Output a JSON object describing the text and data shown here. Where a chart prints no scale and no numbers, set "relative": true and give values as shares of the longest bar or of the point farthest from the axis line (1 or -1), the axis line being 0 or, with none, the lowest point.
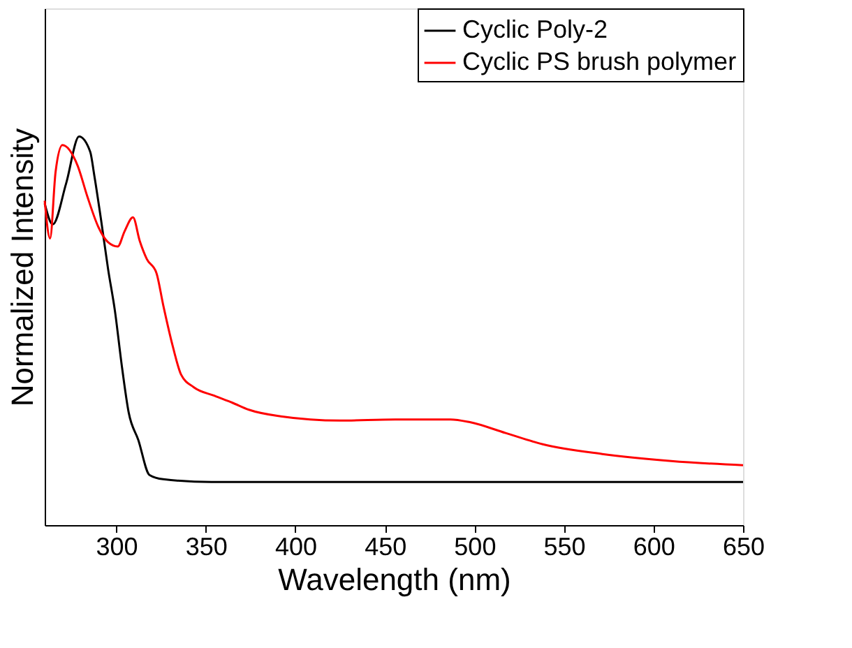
{
  "chart_data": {
    "type": "line",
    "xlabel": "Wavelength (nm)",
    "ylabel": "Normalized Intensity",
    "relative": true,
    "xlim": [
      260,
      650
    ],
    "xticks": [
      300,
      350,
      400,
      450,
      500,
      550,
      600,
      650
    ],
    "legend": "top right",
    "grid": false,
    "series": [
      {
        "name": "Cyclic Poly-2",
        "color": "#000000",
        "x": [
          260,
          264.5,
          272,
          279.2,
          285.4,
          287.7,
          291.5,
          295.4,
          299.2,
          303.1,
          306.9,
          312.3,
          318.5,
          326.2,
          353,
          450,
          550,
          650
        ],
        "values": [
          0.828,
          0.774,
          0.88,
          1.0,
          0.961,
          0.9,
          0.785,
          0.659,
          0.552,
          0.409,
          0.29,
          0.219,
          0.129,
          0.118,
          0.111,
          0.111,
          0.111,
          0.111
        ]
      },
      {
        "name": "Cyclic PS brush polymer",
        "color": "#ff0000",
        "x": [
          260,
          263,
          266.1,
          269.9,
          278.4,
          283.8,
          290,
          295.4,
          300.8,
          304.6,
          309.3,
          313.1,
          317,
          322.4,
          326.2,
          331.6,
          336.2,
          343.2,
          354.7,
          364.8,
          374,
          391.8,
          424.9,
          455.7,
          486.6,
          497.4,
          517.4,
          538.2,
          571.4,
          609.9,
          650
        ],
        "values": [
          0.835,
          0.738,
          0.91,
          0.978,
          0.925,
          0.846,
          0.767,
          0.728,
          0.717,
          0.756,
          0.792,
          0.731,
          0.685,
          0.649,
          0.566,
          0.459,
          0.387,
          0.355,
          0.333,
          0.315,
          0.297,
          0.28,
          0.269,
          0.272,
          0.272,
          0.265,
          0.237,
          0.208,
          0.183,
          0.165,
          0.154
        ]
      }
    ]
  }
}
